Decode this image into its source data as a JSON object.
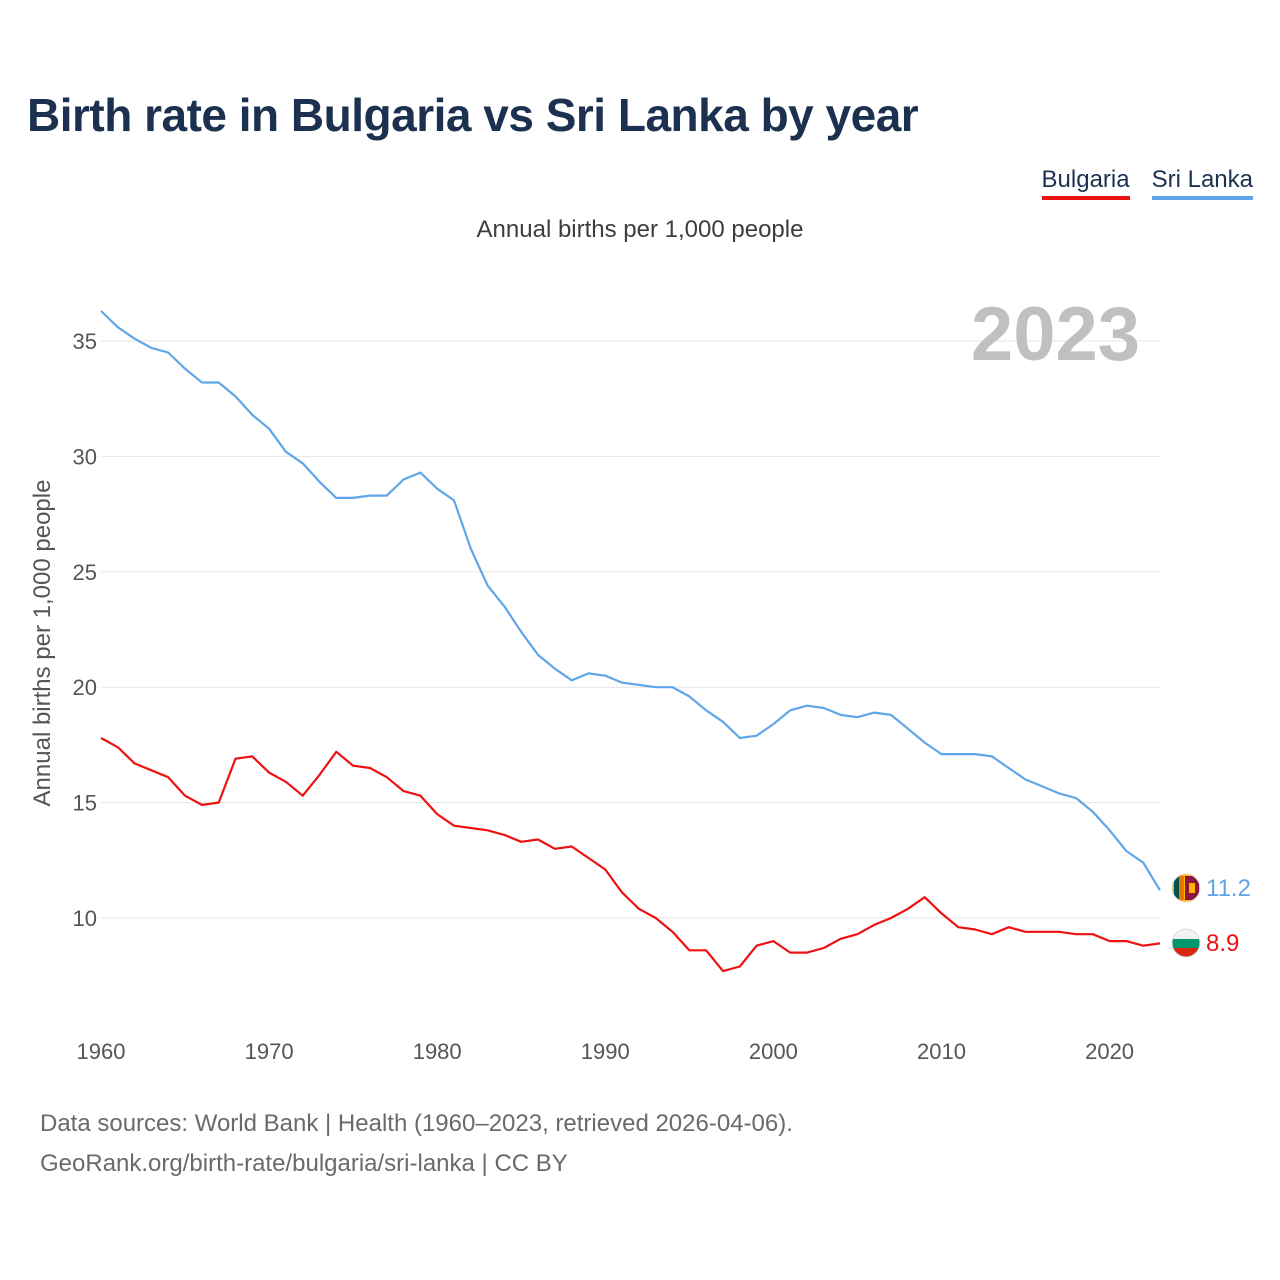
{
  "title": "Birth rate in Bulgaria vs Sri Lanka by year",
  "subtitle": "Annual births per 1,000 people",
  "legend": [
    {
      "name": "Bulgaria",
      "color": "#ee1111"
    },
    {
      "name": "Sri Lanka",
      "color": "#5fa6e8"
    }
  ],
  "footer": {
    "line1": "Data sources: World Bank | Health (1960–2023, retrieved 2026-04-06).",
    "line2": "GeoRank.org/birth-rate/bulgaria/sri-lanka | CC BY"
  },
  "chart_data": {
    "type": "line",
    "title": "Birth rate in Bulgaria vs Sri Lanka by year",
    "subtitle": "Annual births per 1,000 people",
    "xlabel": "",
    "ylabel": "Annual births per 1,000 people",
    "year_label": "2023",
    "xlim": [
      1960,
      2023
    ],
    "ylim": [
      5.5,
      36.5
    ],
    "xticks": [
      1960,
      1970,
      1980,
      1990,
      2000,
      2010,
      2020
    ],
    "yticks": [
      10,
      15,
      20,
      25,
      30,
      35
    ],
    "grid": true,
    "x": [
      1960,
      1961,
      1962,
      1963,
      1964,
      1965,
      1966,
      1967,
      1968,
      1969,
      1970,
      1971,
      1972,
      1973,
      1974,
      1975,
      1976,
      1977,
      1978,
      1979,
      1980,
      1981,
      1982,
      1983,
      1984,
      1985,
      1986,
      1987,
      1988,
      1989,
      1990,
      1991,
      1992,
      1993,
      1994,
      1995,
      1996,
      1997,
      1998,
      1999,
      2000,
      2001,
      2002,
      2003,
      2004,
      2005,
      2006,
      2007,
      2008,
      2009,
      2010,
      2011,
      2012,
      2013,
      2014,
      2015,
      2016,
      2017,
      2018,
      2019,
      2020,
      2021,
      2022,
      2023
    ],
    "series": [
      {
        "name": "Sri Lanka",
        "color": "#5fa6e8",
        "end_label": "11.2",
        "values": [
          36.3,
          35.6,
          35.1,
          34.7,
          34.5,
          33.8,
          33.2,
          33.2,
          32.6,
          31.8,
          31.2,
          30.2,
          29.7,
          28.9,
          28.2,
          28.2,
          28.3,
          28.3,
          29.0,
          29.3,
          28.6,
          28.1,
          26.0,
          24.4,
          23.5,
          22.4,
          21.4,
          20.8,
          20.3,
          20.6,
          20.5,
          20.2,
          20.1,
          20.0,
          20.0,
          19.6,
          19.0,
          18.5,
          17.8,
          17.9,
          18.4,
          19.0,
          19.2,
          19.1,
          18.8,
          18.7,
          18.9,
          18.8,
          18.2,
          17.6,
          17.1,
          17.1,
          17.1,
          17.0,
          16.5,
          16.0,
          15.7,
          15.4,
          15.2,
          14.6,
          13.8,
          12.9,
          12.4,
          11.2
        ]
      },
      {
        "name": "Bulgaria",
        "color": "#ee1111",
        "end_label": "8.9",
        "values": [
          17.8,
          17.4,
          16.7,
          16.4,
          16.1,
          15.3,
          14.9,
          15.0,
          16.9,
          17.0,
          16.3,
          15.9,
          15.3,
          16.2,
          17.2,
          16.6,
          16.5,
          16.1,
          15.5,
          15.3,
          14.5,
          14.0,
          13.9,
          13.8,
          13.6,
          13.3,
          13.4,
          13.0,
          13.1,
          12.6,
          12.1,
          11.1,
          10.4,
          10.0,
          9.4,
          8.6,
          8.6,
          7.7,
          7.9,
          8.8,
          9.0,
          8.5,
          8.5,
          8.7,
          9.1,
          9.3,
          9.7,
          10.0,
          10.4,
          10.9,
          10.2,
          9.6,
          9.5,
          9.3,
          9.6,
          9.4,
          9.4,
          9.4,
          9.3,
          9.3,
          9.0,
          9.0,
          8.8,
          8.9
        ]
      }
    ]
  }
}
